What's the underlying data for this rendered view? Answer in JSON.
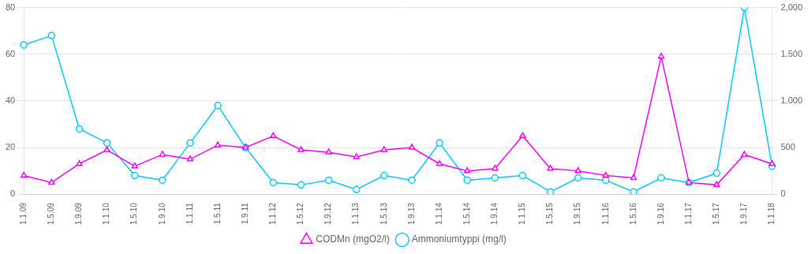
{
  "chart_data": {
    "type": "line",
    "categories": [
      "1.1.09",
      "1.5.09",
      "1.9.09",
      "1.1.10",
      "1.5.10",
      "1.9.10",
      "1.1.11",
      "1.5.11",
      "1.9.11",
      "1.1.12",
      "1.5.12",
      "1.9.12",
      "1.1.13",
      "1.5.13",
      "1.9.13",
      "1.1.14",
      "1.5.14",
      "1.9.14",
      "1.1.15",
      "1.5.15",
      "1.9.15",
      "1.1.16",
      "1.5.16",
      "1.9.16",
      "1.1.17",
      "1.5.17",
      "1.9.17",
      "1.1.18"
    ],
    "series": [
      {
        "name": "CODMn (mgO2/l)",
        "color": "#FF00FF",
        "marker": "triangle",
        "axis": "y",
        "values": [
          8,
          5,
          13,
          19,
          12,
          17,
          15,
          21,
          20,
          25,
          19,
          18,
          16,
          19,
          20,
          13,
          10,
          11,
          25,
          11,
          10,
          8,
          7,
          59,
          5,
          4,
          17,
          13
        ]
      },
      {
        "name": "Ammoniumtyppi (mg/l)",
        "color": "#00CCFF",
        "marker": "circle",
        "axis": "y2",
        "values": [
          1600,
          1700,
          700,
          550,
          200,
          150,
          550,
          950,
          500,
          125,
          100,
          150,
          50,
          200,
          150,
          550,
          150,
          175,
          200,
          25,
          175,
          150,
          25,
          175,
          125,
          225,
          2000,
          300
        ]
      }
    ],
    "ylim": [
      0,
      80
    ],
    "yticks": [
      0,
      20,
      40,
      60,
      80
    ],
    "y2lim": [
      0,
      2000
    ],
    "y2ticks": [
      0,
      500,
      1000,
      1500,
      2000
    ],
    "grid": true,
    "legend": "bottom"
  }
}
